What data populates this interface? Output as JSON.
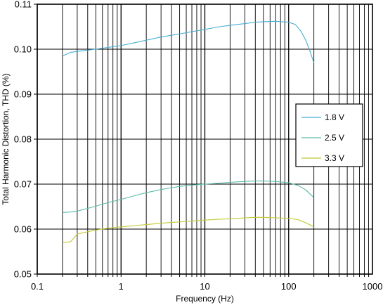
{
  "chart_data": {
    "type": "line",
    "xlabel": "Frequency (Hz)",
    "ylabel": "Total Harmonic Distortion, THD (%)",
    "xscale": "log",
    "xlim": [
      0.1,
      1000
    ],
    "ylim": [
      0.05,
      0.11
    ],
    "x_ticks": [
      "0.1",
      "1",
      "10",
      "100",
      "1000"
    ],
    "y_ticks": [
      "0.05",
      "0.06",
      "0.07",
      "0.08",
      "0.09",
      "0.10",
      "0.11"
    ],
    "grid": true,
    "legend_position": "right",
    "series": [
      {
        "name": "1.8 V",
        "color": "#4aaed0",
        "points": [
          [
            0.2,
            0.0985
          ],
          [
            0.25,
            0.0993
          ],
          [
            0.3,
            0.0995
          ],
          [
            0.4,
            0.0998
          ],
          [
            0.5,
            0.1
          ],
          [
            0.7,
            0.1004
          ],
          [
            1,
            0.1008
          ],
          [
            1.5,
            0.1015
          ],
          [
            2,
            0.102
          ],
          [
            3,
            0.1027
          ],
          [
            4,
            0.1031
          ],
          [
            5,
            0.1034
          ],
          [
            7,
            0.1039
          ],
          [
            10,
            0.1044
          ],
          [
            15,
            0.105
          ],
          [
            20,
            0.1053
          ],
          [
            30,
            0.1057
          ],
          [
            40,
            0.106
          ],
          [
            50,
            0.1061
          ],
          [
            70,
            0.1062
          ],
          [
            100,
            0.106
          ],
          [
            120,
            0.1055
          ],
          [
            140,
            0.104
          ],
          [
            160,
            0.102
          ],
          [
            180,
            0.0995
          ],
          [
            200,
            0.097
          ]
        ]
      },
      {
        "name": "2.5 V",
        "color": "#5abcaa",
        "points": [
          [
            0.2,
            0.0637
          ],
          [
            0.25,
            0.0638
          ],
          [
            0.3,
            0.064
          ],
          [
            0.4,
            0.0646
          ],
          [
            0.5,
            0.0651
          ],
          [
            0.7,
            0.0659
          ],
          [
            1,
            0.0666
          ],
          [
            1.5,
            0.0675
          ],
          [
            2,
            0.0681
          ],
          [
            3,
            0.0688
          ],
          [
            4,
            0.0692
          ],
          [
            5,
            0.0695
          ],
          [
            7,
            0.0698
          ],
          [
            10,
            0.07
          ],
          [
            15,
            0.0702
          ],
          [
            20,
            0.0704
          ],
          [
            30,
            0.0706
          ],
          [
            40,
            0.0707
          ],
          [
            50,
            0.0707
          ],
          [
            70,
            0.0706
          ],
          [
            100,
            0.0703
          ],
          [
            130,
            0.0697
          ],
          [
            160,
            0.0687
          ],
          [
            200,
            0.067
          ]
        ]
      },
      {
        "name": "3.3 V",
        "color": "#c4c832",
        "points": [
          [
            0.2,
            0.057
          ],
          [
            0.25,
            0.0572
          ],
          [
            0.3,
            0.0589
          ],
          [
            0.4,
            0.0594
          ],
          [
            0.5,
            0.0598
          ],
          [
            0.7,
            0.0602
          ],
          [
            1,
            0.0605
          ],
          [
            1.5,
            0.0608
          ],
          [
            2,
            0.061
          ],
          [
            3,
            0.0613
          ],
          [
            4,
            0.0615
          ],
          [
            5,
            0.0616
          ],
          [
            7,
            0.0618
          ],
          [
            10,
            0.062
          ],
          [
            15,
            0.0622
          ],
          [
            20,
            0.0623
          ],
          [
            30,
            0.0625
          ],
          [
            40,
            0.0626
          ],
          [
            50,
            0.0626
          ],
          [
            70,
            0.0625
          ],
          [
            100,
            0.0624
          ],
          [
            130,
            0.0621
          ],
          [
            160,
            0.0614
          ],
          [
            200,
            0.0605
          ]
        ]
      }
    ]
  }
}
